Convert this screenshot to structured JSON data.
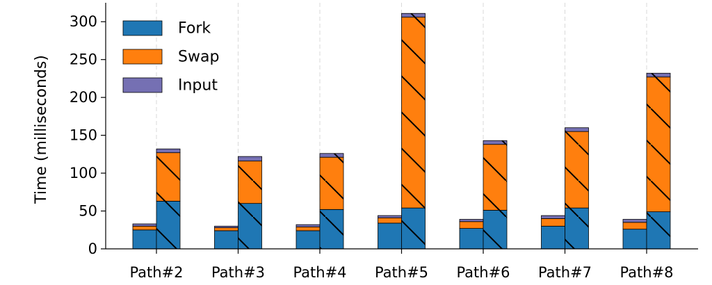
{
  "chart_data": {
    "type": "bar",
    "stacked": true,
    "grouped": true,
    "categories": [
      "Path#2",
      "Path#3",
      "Path#4",
      "Path#5",
      "Path#6",
      "Path#7",
      "Path#8"
    ],
    "ylabel": "Time (milliseconds)",
    "ylim": [
      0,
      325
    ],
    "yticks": [
      0,
      50,
      100,
      150,
      200,
      250,
      300
    ],
    "grid": "vertical-dashed",
    "legend_position": "top-left",
    "colors": {
      "Fork": "#1f77b4",
      "Swap": "#ff7f0e",
      "Input": "#7570b3"
    },
    "legend": [
      "Fork",
      "Swap",
      "Input"
    ],
    "groups": [
      {
        "hatch": "none",
        "series": [
          {
            "name": "Fork",
            "values": [
              25,
              24,
              24,
              34,
              27,
              30,
              26
            ]
          },
          {
            "name": "Swap",
            "values": [
              5,
              4,
              5,
              7,
              9,
              10,
              9
            ]
          },
          {
            "name": "Input",
            "values": [
              3,
              2,
              3,
              3,
              3,
              4,
              4
            ]
          }
        ]
      },
      {
        "hatch": "diagonal",
        "series": [
          {
            "name": "Fork",
            "values": [
              63,
              60,
              52,
              54,
              51,
              54,
              49
            ]
          },
          {
            "name": "Swap",
            "values": [
              64,
              56,
              69,
              252,
              87,
              101,
              178
            ]
          },
          {
            "name": "Input",
            "values": [
              5,
              6,
              5,
              5,
              5,
              5,
              5
            ]
          }
        ]
      }
    ]
  }
}
